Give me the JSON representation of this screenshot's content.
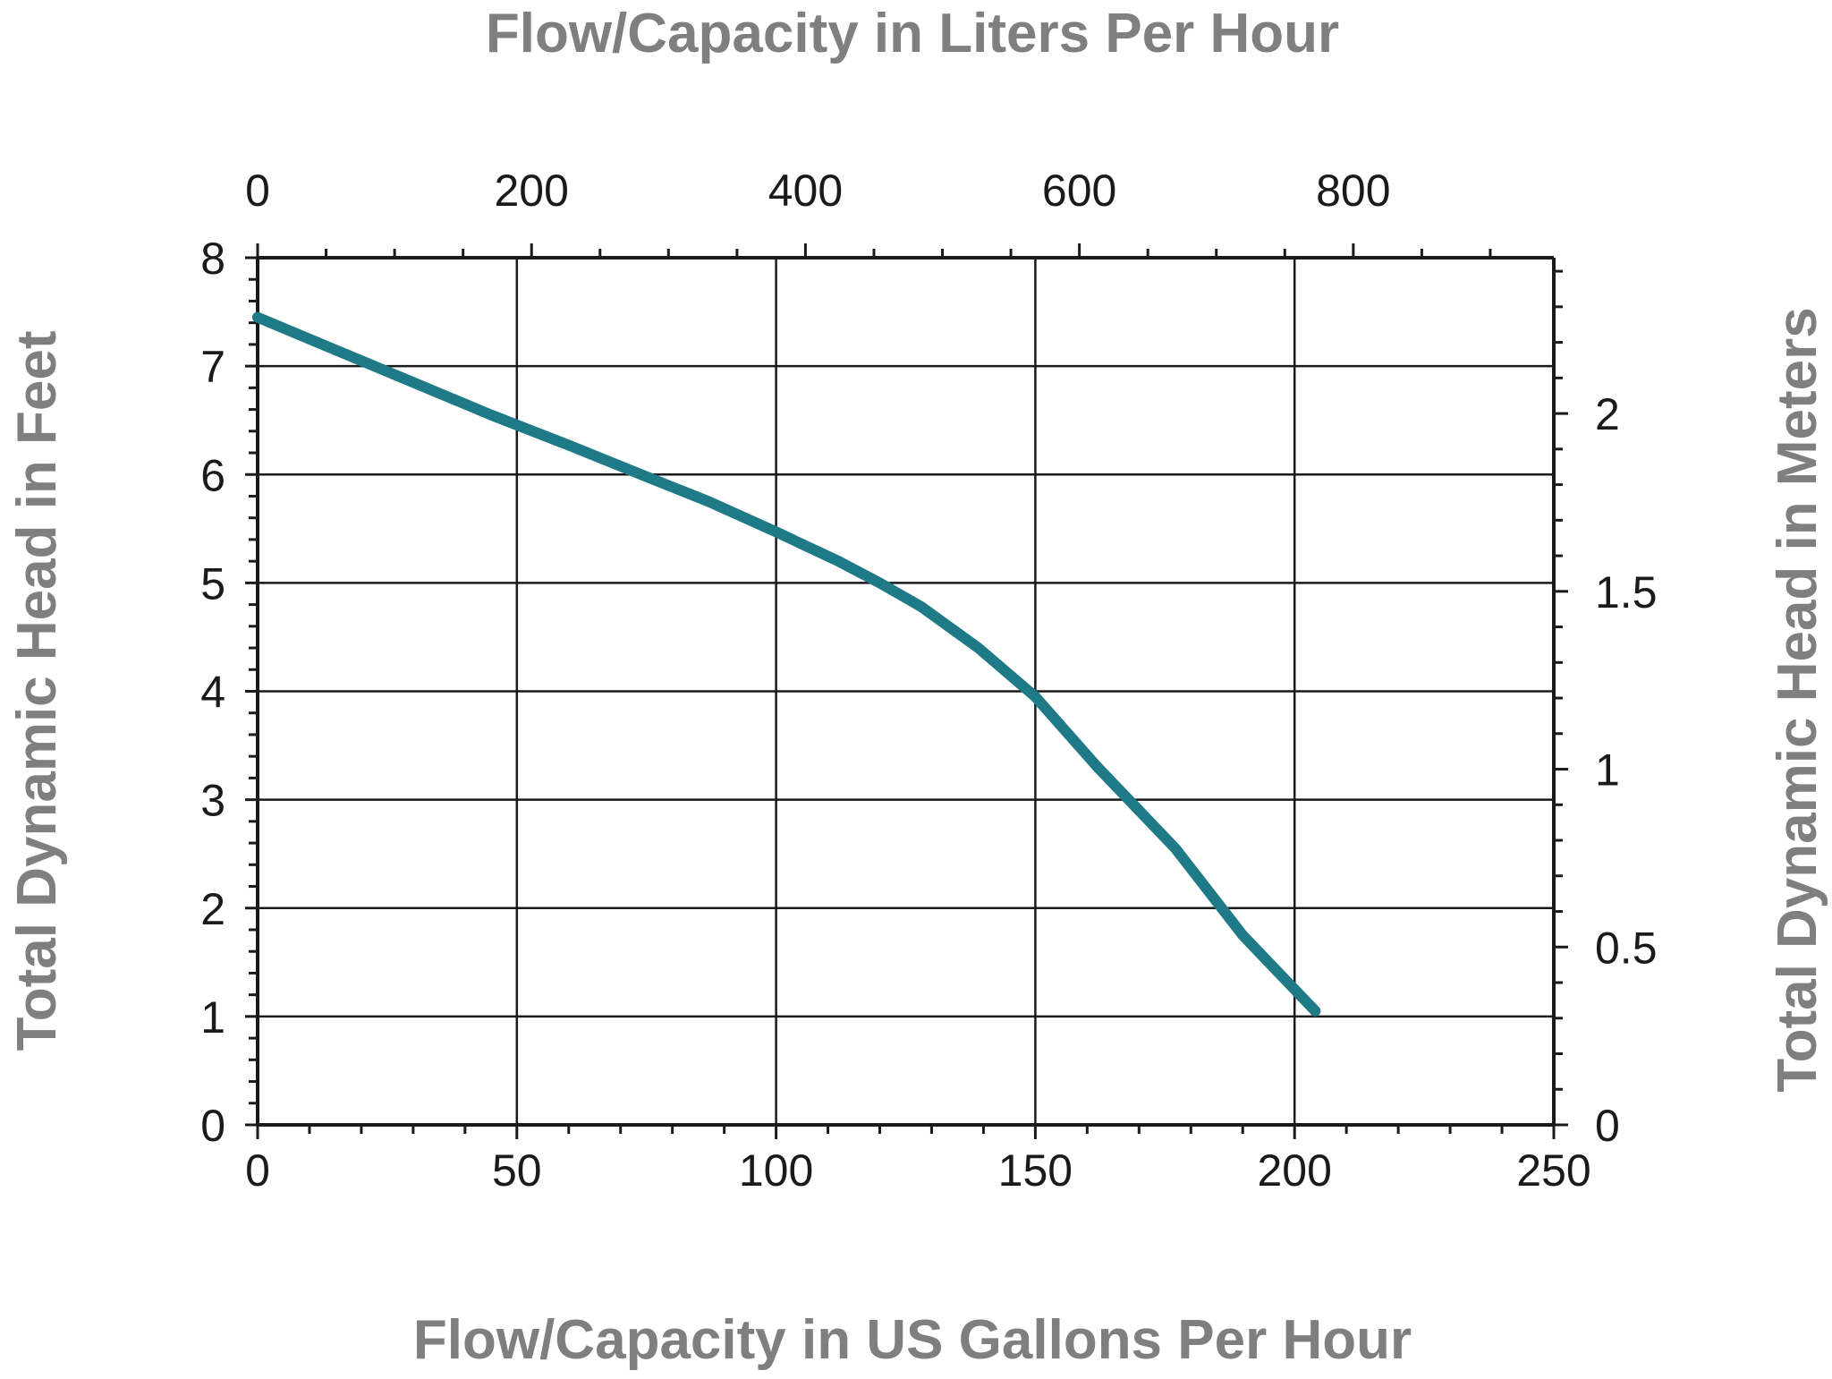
{
  "chart_data": {
    "type": "line",
    "xlabel": "Flow/Capacity in US Gallons Per Hour",
    "x2label": "Flow/Capacity in Liters Per Hour",
    "ylabel": "Total Dynamic Head in Feet",
    "y2label": "Total Dynamic Head in Meters",
    "xlim": [
      0,
      250
    ],
    "ylim": [
      0,
      8
    ],
    "x2lim": [
      0,
      946.4
    ],
    "y2lim": [
      0,
      2.438
    ],
    "x_ticks": [
      0,
      50,
      100,
      150,
      200,
      250
    ],
    "x_tick_labels": [
      "0",
      "50",
      "100",
      "150",
      "200",
      "250"
    ],
    "x2_ticks": [
      0,
      200,
      400,
      600,
      800
    ],
    "x2_tick_labels": [
      "0",
      "200",
      "400",
      "600",
      "800"
    ],
    "y_ticks": [
      0,
      1,
      2,
      3,
      4,
      5,
      6,
      7,
      8
    ],
    "y_tick_labels": [
      "0",
      "1",
      "2",
      "3",
      "4",
      "5",
      "6",
      "7",
      "8"
    ],
    "y2_ticks": [
      0,
      0.5,
      1,
      1.5,
      2
    ],
    "y2_tick_labels": [
      "0",
      "0.5",
      "1",
      "1.5",
      "2"
    ],
    "grid": true,
    "series": [
      {
        "color": "#1f7a87",
        "x": [
          0,
          15,
          30,
          45,
          60,
          75,
          87,
          100,
          112,
          120,
          128,
          139,
          150,
          162,
          177,
          190,
          204
        ],
        "y": [
          7.45,
          7.15,
          6.85,
          6.55,
          6.27,
          5.98,
          5.75,
          5.47,
          5.2,
          5.0,
          4.78,
          4.4,
          3.95,
          3.3,
          2.55,
          1.75,
          1.05
        ]
      }
    ]
  }
}
